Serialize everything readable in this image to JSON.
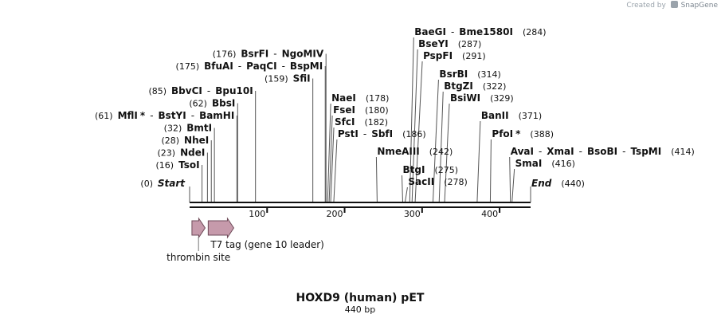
{
  "watermark": {
    "prefix": "Created by",
    "name": "SnapGene",
    "icon": "snapgene-logo-icon"
  },
  "map": {
    "title": "HOXD9 (human)  pET",
    "length_label": "440 bp",
    "length_bp": 440,
    "start_label": "Start",
    "start_pos": "(0)",
    "end_label": "End",
    "end_pos": "(440)",
    "ticks": [
      {
        "bp": 100,
        "label": "100"
      },
      {
        "bp": 200,
        "label": "200"
      },
      {
        "bp": 300,
        "label": "300"
      },
      {
        "bp": 400,
        "label": "400"
      }
    ],
    "left_sites": [
      {
        "pos": "(16)",
        "bp": 16,
        "names": [
          {
            "name": "TsoI",
            "star": false
          }
        ]
      },
      {
        "pos": "(23)",
        "bp": 23,
        "names": [
          {
            "name": "NdeI",
            "star": false
          }
        ]
      },
      {
        "pos": "(28)",
        "bp": 28,
        "names": [
          {
            "name": "NheI",
            "star": false
          }
        ]
      },
      {
        "pos": "(32)",
        "bp": 32,
        "names": [
          {
            "name": "BmtI",
            "star": false
          }
        ]
      },
      {
        "pos": "(61)",
        "bp": 61,
        "names": [
          {
            "name": "MflI",
            "star": true
          },
          {
            "name": "BstYI",
            "star": false
          },
          {
            "name": "BamHI",
            "star": false
          }
        ]
      },
      {
        "pos": "(62)",
        "bp": 62,
        "names": [
          {
            "name": "BbsI",
            "star": false
          }
        ]
      },
      {
        "pos": "(85)",
        "bp": 85,
        "names": [
          {
            "name": "BbvCI",
            "star": false
          },
          {
            "name": "Bpu10I",
            "star": false
          }
        ]
      },
      {
        "pos": "(159)",
        "bp": 159,
        "names": [
          {
            "name": "SfiI",
            "star": false
          }
        ]
      },
      {
        "pos": "(175)",
        "bp": 175,
        "names": [
          {
            "name": "BfuAI",
            "star": false
          },
          {
            "name": "PaqCI",
            "star": false
          },
          {
            "name": "BspMI",
            "star": false
          }
        ]
      },
      {
        "pos": "(176)",
        "bp": 176,
        "names": [
          {
            "name": "BsrFI",
            "star": false
          },
          {
            "name": "NgoMIV",
            "star": false
          }
        ]
      }
    ],
    "right_sites": [
      {
        "pos": "(178)",
        "bp": 178,
        "names": [
          {
            "name": "NaeI",
            "star": false
          }
        ]
      },
      {
        "pos": "(180)",
        "bp": 180,
        "names": [
          {
            "name": "FseI",
            "star": false
          }
        ]
      },
      {
        "pos": "(182)",
        "bp": 182,
        "names": [
          {
            "name": "SfcI",
            "star": false
          }
        ]
      },
      {
        "pos": "(186)",
        "bp": 186,
        "names": [
          {
            "name": "PstI",
            "star": false
          },
          {
            "name": "SbfI",
            "star": false
          }
        ]
      },
      {
        "pos": "(242)",
        "bp": 242,
        "names": [
          {
            "name": "NmeAIII",
            "star": false
          }
        ]
      },
      {
        "pos": "(275)",
        "bp": 275,
        "names": [
          {
            "name": "BtgI",
            "star": false
          }
        ]
      },
      {
        "pos": "(278)",
        "bp": 278,
        "names": [
          {
            "name": "SacII",
            "star": false
          }
        ]
      },
      {
        "pos": "(284)",
        "bp": 284,
        "names": [
          {
            "name": "BaeGI",
            "star": false
          },
          {
            "name": "Bme1580I",
            "star": false
          }
        ]
      },
      {
        "pos": "(287)",
        "bp": 287,
        "names": [
          {
            "name": "BseYI",
            "star": false
          }
        ]
      },
      {
        "pos": "(291)",
        "bp": 291,
        "names": [
          {
            "name": "PspFI",
            "star": false
          }
        ]
      },
      {
        "pos": "(314)",
        "bp": 314,
        "names": [
          {
            "name": "BsrBI",
            "star": false
          }
        ]
      },
      {
        "pos": "(322)",
        "bp": 322,
        "names": [
          {
            "name": "BtgZI",
            "star": false
          }
        ]
      },
      {
        "pos": "(329)",
        "bp": 329,
        "names": [
          {
            "name": "BsiWI",
            "star": false
          }
        ]
      },
      {
        "pos": "(371)",
        "bp": 371,
        "names": [
          {
            "name": "BanII",
            "star": false
          }
        ]
      },
      {
        "pos": "(388)",
        "bp": 388,
        "names": [
          {
            "name": "PfoI",
            "star": true
          }
        ]
      },
      {
        "pos": "(414)",
        "bp": 414,
        "names": [
          {
            "name": "AvaI",
            "star": false
          },
          {
            "name": "XmaI",
            "star": false
          },
          {
            "name": "BsoBI",
            "star": false
          },
          {
            "name": "TspMI",
            "star": false
          }
        ]
      },
      {
        "pos": "(416)",
        "bp": 416,
        "names": [
          {
            "name": "SmaI",
            "star": false
          }
        ]
      }
    ],
    "features": [
      {
        "name": "thrombin site",
        "start_bp": 3,
        "end_bp": 20,
        "color": "#c69aab"
      },
      {
        "name": "T7 tag (gene 10 leader)",
        "start_bp": 24,
        "end_bp": 57,
        "color": "#c69aab"
      }
    ]
  }
}
